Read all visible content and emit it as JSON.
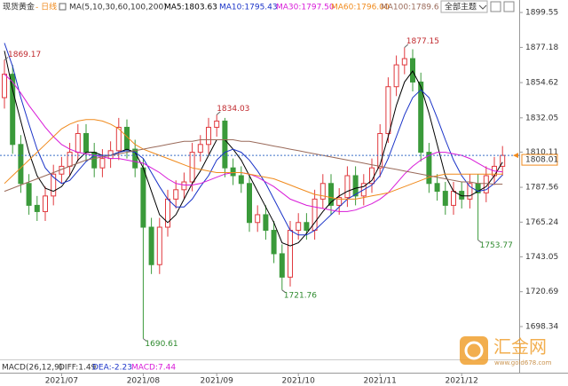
{
  "chart_data": {
    "type": "candlestick",
    "title": "现货黄金",
    "period": "- 日线",
    "ma_label": "MA(5,10,30,60,100,200)",
    "theme_button": "全部主题",
    "watermark": {
      "name": "汇金网",
      "url": "www.gold678.com"
    },
    "categories": [
      null,
      null,
      null,
      null,
      null,
      null,
      null,
      "2021/07",
      null,
      null,
      null,
      null,
      null,
      null,
      null,
      null,
      null,
      "2021/08",
      null,
      null,
      null,
      null,
      null,
      null,
      null,
      null,
      "2021/09",
      null,
      null,
      null,
      null,
      null,
      null,
      null,
      null,
      null,
      "2021/10",
      null,
      null,
      null,
      null,
      null,
      null,
      null,
      null,
      null,
      "2021/11",
      null,
      null,
      null,
      null,
      null,
      null,
      null,
      null,
      null,
      "2021/12",
      null,
      null,
      null,
      null,
      null
    ],
    "open": [
      1845,
      1860,
      1815,
      1790,
      1776,
      1772,
      1782,
      1796,
      1801,
      1810,
      1822,
      1810,
      1800,
      1806,
      1811,
      1826,
      1812,
      1800,
      1762,
      1738,
      1762,
      1780,
      1786,
      1791,
      1810,
      1815,
      1826,
      1830,
      1800,
      1795,
      1790,
      1765,
      1770,
      1760,
      1745,
      1730,
      1760,
      1765,
      1760,
      1780,
      1790,
      1776,
      1781,
      1795,
      1782,
      1790,
      1800,
      1822,
      1852,
      1866,
      1870,
      1855,
      1810,
      1790,
      1785,
      1776,
      1785,
      1780,
      1790,
      1784,
      1795,
      1801
    ],
    "high": [
      1869.17,
      1866,
      1821,
      1796,
      1782,
      1788,
      1802,
      1807,
      1816,
      1828,
      1828,
      1816,
      1812,
      1817,
      1832,
      1831,
      1818,
      1806,
      1768,
      1768,
      1786,
      1792,
      1797,
      1816,
      1821,
      1832,
      1834.03,
      1832,
      1806,
      1801,
      1796,
      1776,
      1776,
      1766,
      1751,
      1766,
      1771,
      1771,
      1786,
      1796,
      1796,
      1787,
      1801,
      1801,
      1796,
      1806,
      1828,
      1858,
      1872,
      1877.15,
      1876,
      1861,
      1816,
      1796,
      1791,
      1791,
      1791,
      1796,
      1796,
      1801,
      1807,
      1814
    ],
    "low": [
      1838,
      1809,
      1784,
      1770,
      1766,
      1766,
      1776,
      1790,
      1795,
      1804,
      1804,
      1794,
      1794,
      1800,
      1805,
      1806,
      1794,
      1690.61,
      1732,
      1732,
      1756,
      1774,
      1780,
      1785,
      1804,
      1809,
      1820,
      1794,
      1789,
      1784,
      1759,
      1759,
      1754,
      1739,
      1721.76,
      1724,
      1754,
      1754,
      1754,
      1774,
      1770,
      1770,
      1775,
      1776,
      1776,
      1784,
      1794,
      1816,
      1846,
      1860,
      1849,
      1804,
      1784,
      1779,
      1770,
      1770,
      1774,
      1774,
      1753.77,
      1778,
      1789,
      1795
    ],
    "close": [
      1860,
      1815,
      1790,
      1776,
      1772,
      1782,
      1796,
      1801,
      1810,
      1822,
      1810,
      1800,
      1806,
      1811,
      1826,
      1812,
      1800,
      1762,
      1738,
      1762,
      1780,
      1786,
      1791,
      1810,
      1815,
      1826,
      1830,
      1800,
      1795,
      1790,
      1765,
      1770,
      1760,
      1745,
      1730,
      1760,
      1765,
      1760,
      1780,
      1790,
      1776,
      1781,
      1795,
      1782,
      1790,
      1800,
      1822,
      1852,
      1866,
      1870,
      1855,
      1810,
      1790,
      1785,
      1776,
      1785,
      1780,
      1790,
      1784,
      1795,
      1801,
      1808
    ],
    "up_color": "#e0393e",
    "down_color": "#3a9a3a",
    "series": [
      {
        "name": "MA5:1803.63",
        "color": "#000000",
        "values": [
          1875,
          1850,
          1830,
          1810,
          1795,
          1787,
          1785,
          1788,
          1795,
          1805,
          1810,
          1810,
          1808,
          1808,
          1810,
          1812,
          1810,
          1800,
          1785,
          1770,
          1765,
          1770,
          1780,
          1790,
          1798,
          1808,
          1818,
          1818,
          1812,
          1805,
          1795,
          1785,
          1775,
          1765,
          1752,
          1750,
          1752,
          1758,
          1765,
          1772,
          1778,
          1782,
          1785,
          1787,
          1788,
          1792,
          1802,
          1820,
          1840,
          1855,
          1862,
          1852,
          1835,
          1815,
          1795,
          1785,
          1782,
          1782,
          1785,
          1788,
          1795,
          1803.63
        ]
      },
      {
        "name": "MA10:1795.43",
        "color": "#1a33c8",
        "values": [
          1880,
          1865,
          1845,
          1828,
          1812,
          1800,
          1794,
          1790,
          1792,
          1798,
          1804,
          1808,
          1808,
          1808,
          1810,
          1811,
          1810,
          1806,
          1797,
          1788,
          1780,
          1775,
          1775,
          1780,
          1788,
          1795,
          1805,
          1810,
          1812,
          1810,
          1805,
          1798,
          1790,
          1780,
          1770,
          1760,
          1757,
          1757,
          1760,
          1765,
          1770,
          1775,
          1780,
          1783,
          1786,
          1789,
          1795,
          1806,
          1820,
          1834,
          1845,
          1850,
          1845,
          1832,
          1818,
          1805,
          1795,
          1788,
          1785,
          1786,
          1790,
          1795.43
        ]
      },
      {
        "name": "MA30:1797.50",
        "color": "#d81ad8",
        "values": [
          1860,
          1855,
          1848,
          1840,
          1833,
          1826,
          1820,
          1815,
          1812,
          1810,
          1809,
          1808,
          1807,
          1806,
          1806,
          1805,
          1804,
          1803,
          1800,
          1797,
          1793,
          1790,
          1789,
          1789,
          1790,
          1792,
          1794,
          1796,
          1797,
          1797,
          1796,
          1794,
          1791,
          1788,
          1784,
          1780,
          1778,
          1776,
          1775,
          1774,
          1773,
          1772,
          1772,
          1773,
          1775,
          1777,
          1780,
          1784,
          1790,
          1796,
          1801,
          1805,
          1808,
          1810,
          1810,
          1809,
          1808,
          1806,
          1803,
          1800,
          1798,
          1797.5
        ]
      },
      {
        "name": "MA60:1796.00",
        "color": "#f08a1c",
        "values": [
          1790,
          1795,
          1800,
          1805,
          1810,
          1815,
          1820,
          1825,
          1828,
          1830,
          1831,
          1831,
          1830,
          1828,
          1825,
          1820,
          1815,
          1812,
          1810,
          1808,
          1806,
          1804,
          1802,
          1800,
          1799,
          1798,
          1797,
          1797,
          1797,
          1797,
          1796,
          1795,
          1794,
          1793,
          1791,
          1789,
          1787,
          1785,
          1783,
          1782,
          1781,
          1780,
          1780,
          1780,
          1781,
          1782,
          1783,
          1784,
          1786,
          1788,
          1790,
          1792,
          1794,
          1795,
          1796,
          1796,
          1796,
          1796,
          1796,
          1796,
          1796,
          1796.0
        ]
      },
      {
        "name": "MA100:1789.6",
        "color": "#9a6a5a",
        "values": [
          1785,
          1787,
          1789,
          1791,
          1793,
          1795,
          1797,
          1799,
          1801,
          1803,
          1805,
          1806,
          1807,
          1808,
          1809,
          1810,
          1811,
          1812,
          1813,
          1814,
          1815,
          1816,
          1817,
          1817,
          1818,
          1818,
          1818,
          1818,
          1818,
          1817,
          1817,
          1816,
          1815,
          1814,
          1813,
          1812,
          1811,
          1810,
          1809,
          1808,
          1807,
          1806,
          1805,
          1804,
          1803,
          1802,
          1801,
          1800,
          1799,
          1798,
          1797,
          1796,
          1795,
          1794,
          1793,
          1792,
          1791,
          1791,
          1790,
          1790,
          1789.6,
          1789.6
        ]
      }
    ],
    "last_price": 1808.01,
    "ylim": [
      1683,
      1903
    ],
    "yticks": [
      1698.34,
      1720.69,
      1743.05,
      1765.24,
      1787.56,
      1810.11,
      1832.05,
      1854.62,
      1877.18,
      1899.55
    ],
    "macd": {
      "title": "MACD(26,12,9)",
      "diff": "DIFF:1.49",
      "dea": "DEA:-2.23",
      "macd": "MACD:7.44"
    }
  }
}
